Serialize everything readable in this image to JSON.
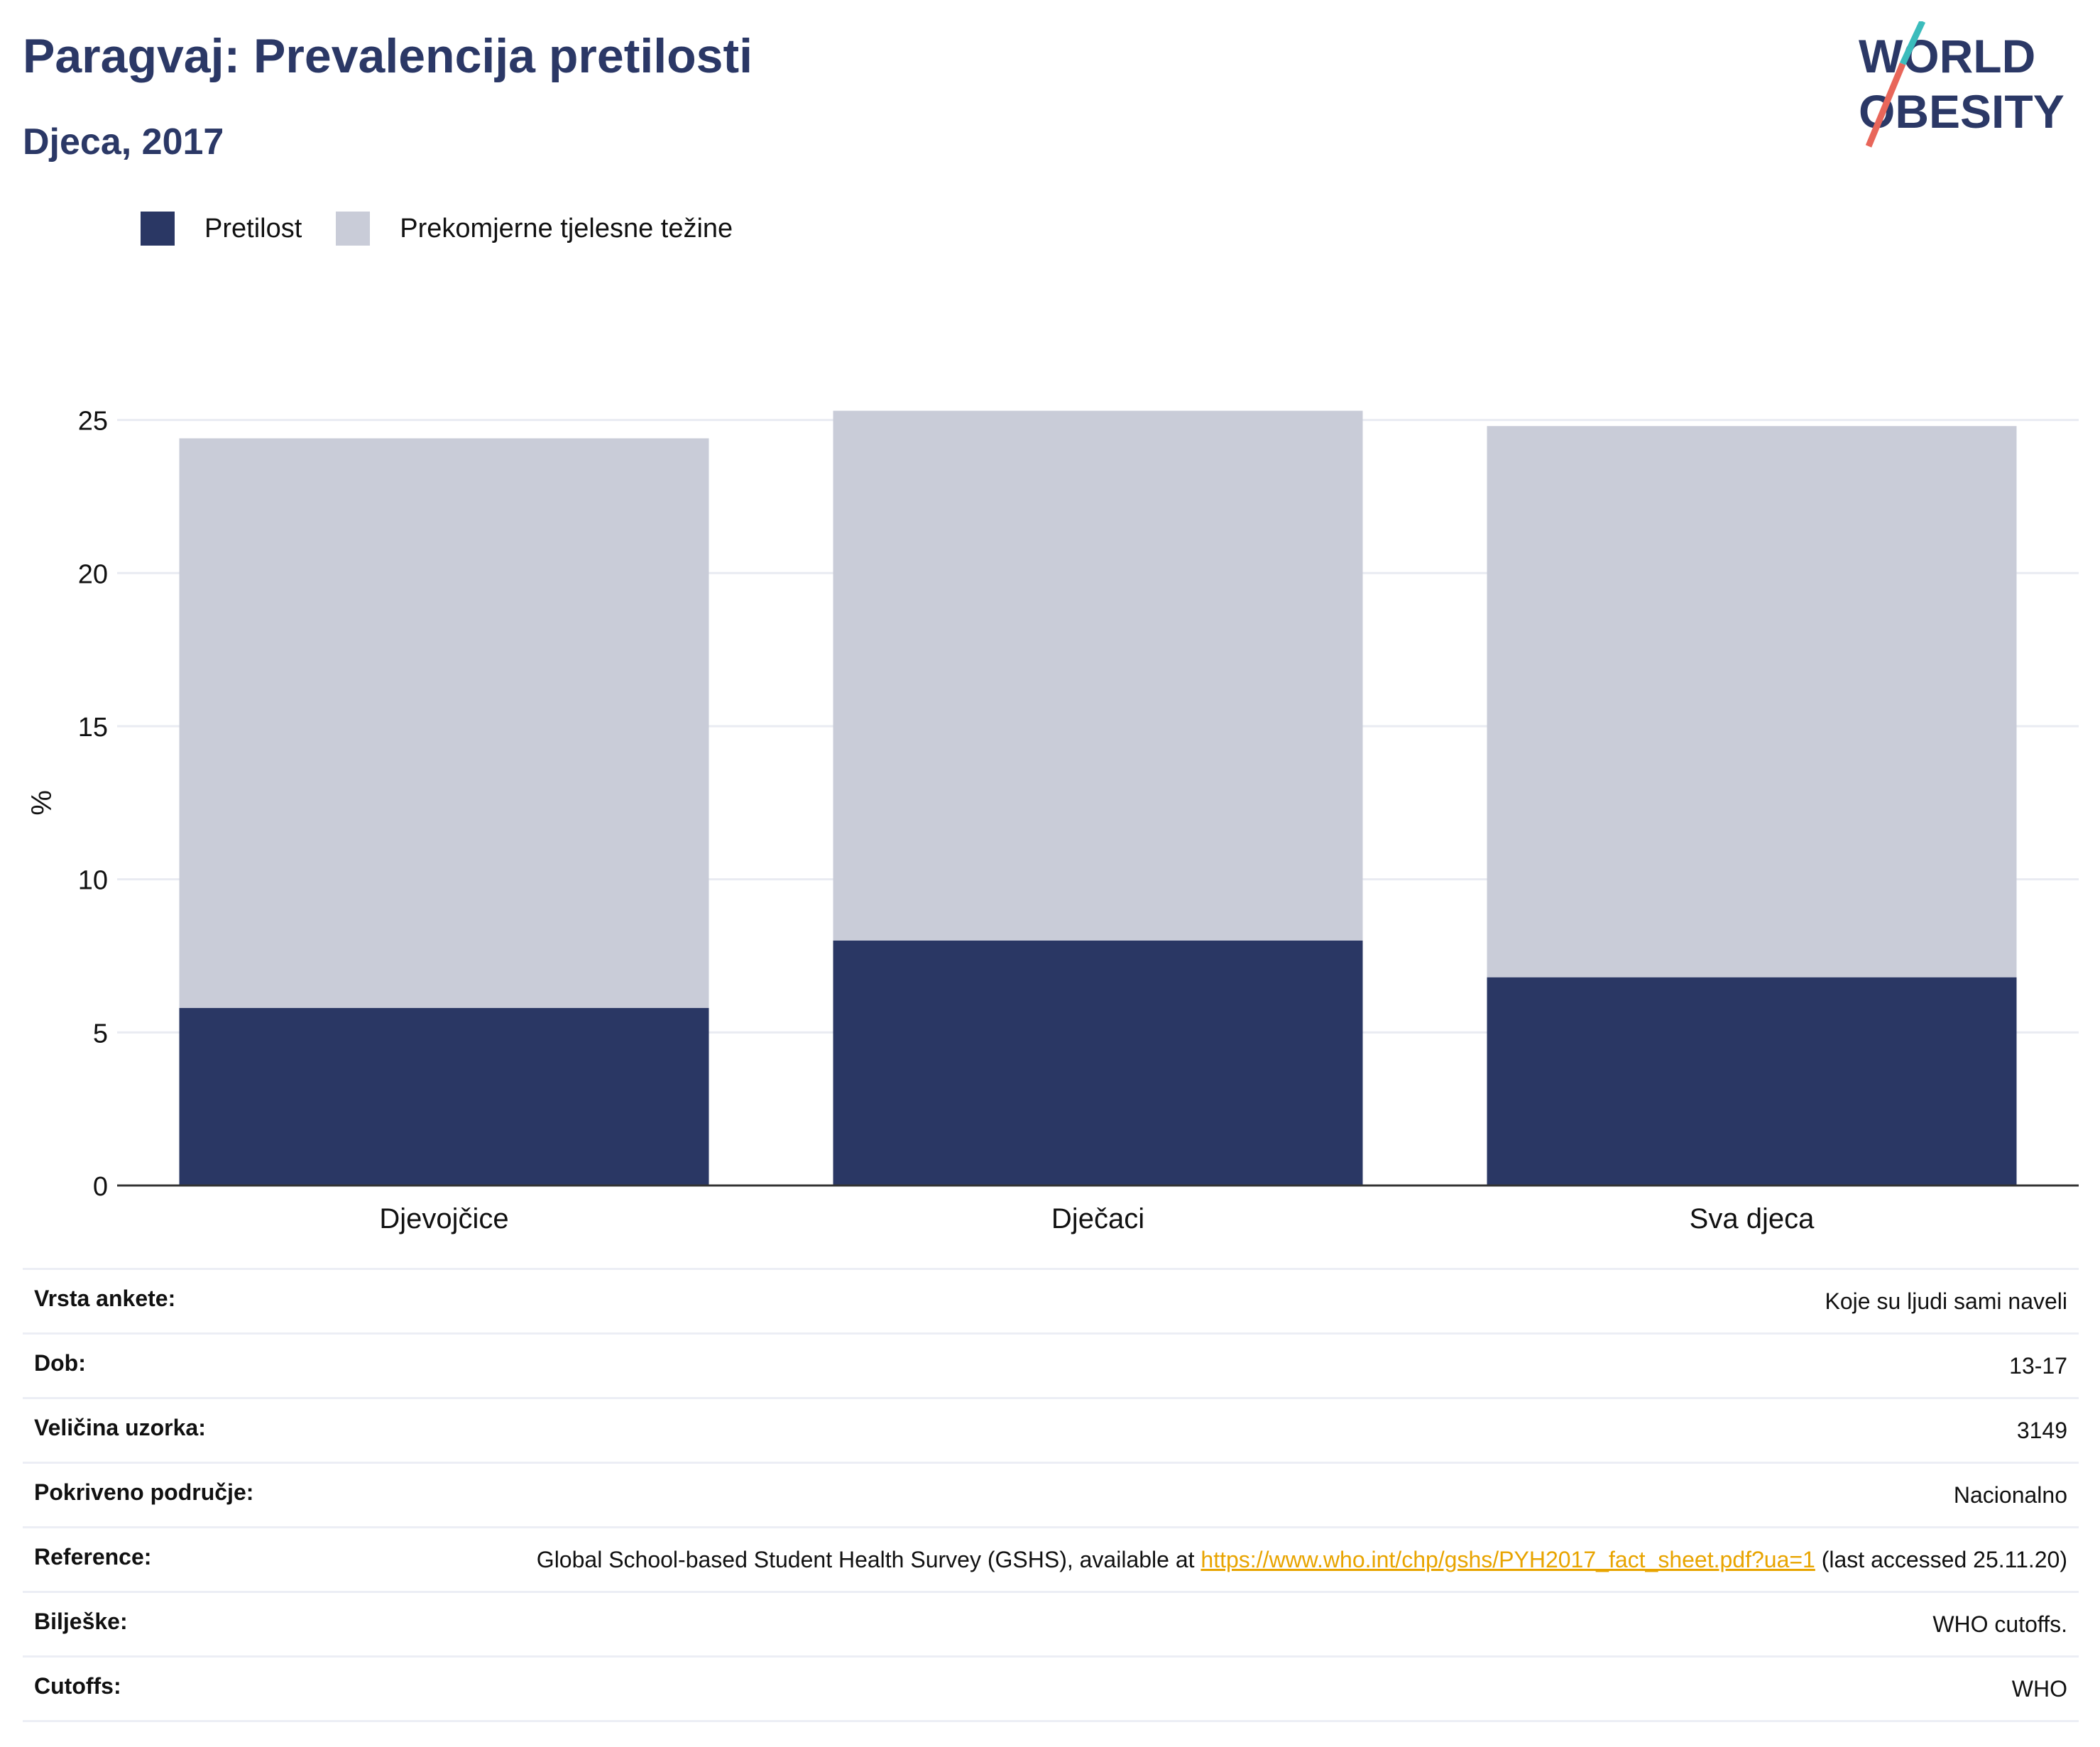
{
  "header": {
    "title": "Paragvaj: Prevalencija pretilosti",
    "subtitle": "Djeca, 2017"
  },
  "logo": {
    "line1": "WORLD",
    "line2": "OBESITY"
  },
  "legend": {
    "items": [
      {
        "label": "Pretilost",
        "color": "#2a3764"
      },
      {
        "label": "Prekomjerne tjelesne težine",
        "color": "#c9ccd8"
      }
    ]
  },
  "chart_data": {
    "type": "bar",
    "stacked": true,
    "categories": [
      "Djevojčice",
      "Dječaci",
      "Sva djeca"
    ],
    "series": [
      {
        "name": "Pretilost",
        "values": [
          5.8,
          8.0,
          6.8
        ],
        "color": "#2a3764"
      },
      {
        "name": "Prekomjerne tjelesne težine",
        "values": [
          18.6,
          17.3,
          18.0
        ],
        "color": "#c9ccd8"
      }
    ],
    "ylabel": "%",
    "ylim": [
      0,
      25.5
    ],
    "yticks": [
      0,
      5,
      10,
      15,
      20,
      25
    ],
    "grid": true,
    "legend_position": "top-left"
  },
  "meta": {
    "survey_type": {
      "label": "Vrsta ankete:",
      "value": "Koje su ljudi sami naveli"
    },
    "age": {
      "label": "Dob:",
      "value": "13-17"
    },
    "sample_size": {
      "label": "Veličina uzorka:",
      "value": "3149"
    },
    "coverage": {
      "label": "Pokriveno područje:",
      "value": "Nacionalno"
    },
    "reference": {
      "label": "Reference:",
      "text_before": "Global School-based Student Health Survey (GSHS), available at ",
      "link": "https://www.who.int/chp/gshs/PYH2017_fact_sheet.pdf?ua=1",
      "text_after": " (last accessed 25.11.20)"
    },
    "notes": {
      "label": "Bilješke:",
      "value": "WHO cutoffs."
    },
    "cutoffs": {
      "label": "Cutoffs:",
      "value": "WHO"
    }
  }
}
